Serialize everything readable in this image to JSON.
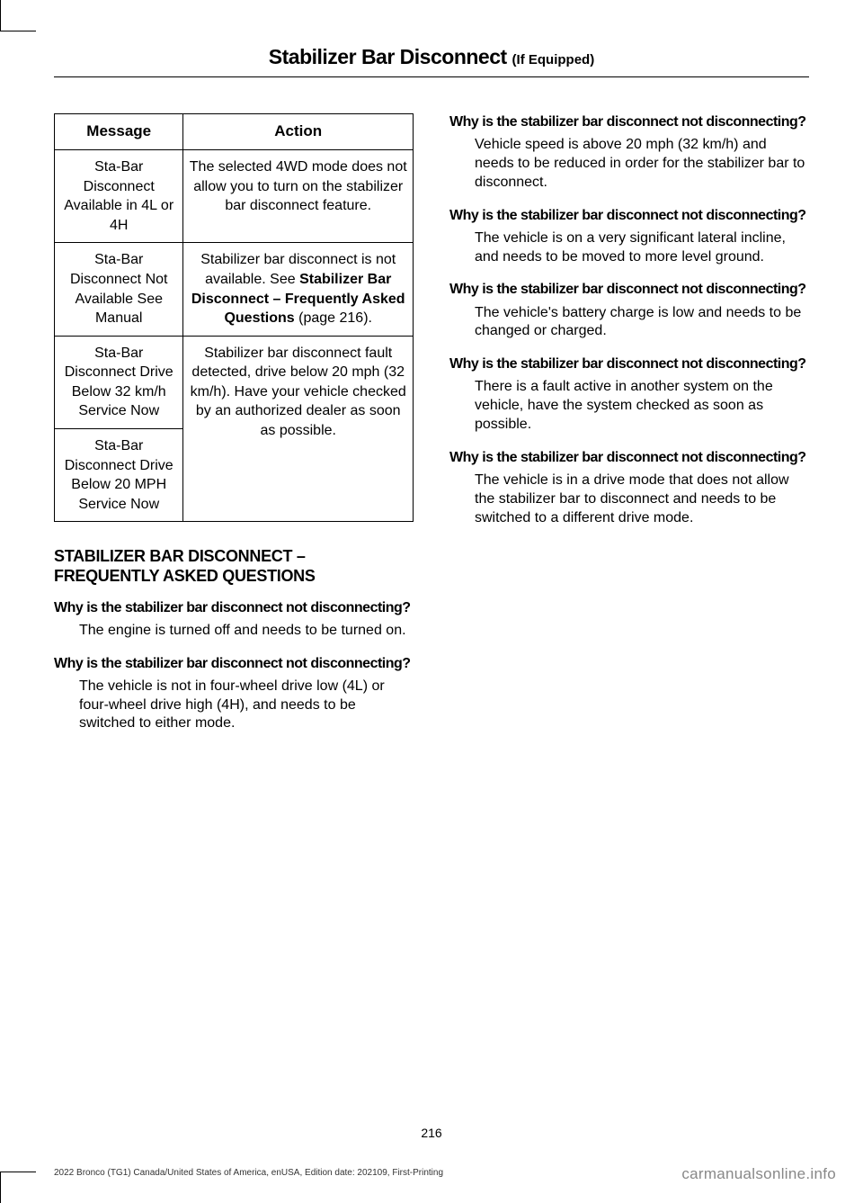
{
  "header": {
    "title": "Stabilizer Bar Disconnect ",
    "subtitle": "(If Equipped)"
  },
  "table": {
    "columns": [
      "Message",
      "Action"
    ],
    "rows": [
      {
        "message": "Sta-Bar Disconnect Available in 4L or 4H",
        "action": "The selected 4WD mode does not allow you to turn on the stabilizer bar disconnect feature."
      },
      {
        "message": "Sta-Bar Disconnect Not Available See Manual",
        "action_prefix": "Stabilizer bar disconnect is not available.  See ",
        "action_bold": "Stabilizer Bar Disconnect – Frequently Asked Questions ",
        "action_suffix": "(page 216)."
      },
      {
        "message": "Sta-Bar Disconnect Drive Below 32 km/h Service Now",
        "action": "Stabilizer bar disconnect fault detected, drive below 20 mph (32 km/h). Have your vehicle checked by an authorized dealer as soon as possible.",
        "rowspan_action": true
      },
      {
        "message": "Sta-Bar Disconnect Drive Below 20 MPH Service Now"
      }
    ]
  },
  "section_heading": "STABILIZER BAR DISCONNECT – FREQUENTLY ASKED QUESTIONS",
  "faqs_left": [
    {
      "q": "Why is the stabilizer bar disconnect not disconnecting?",
      "a": "The engine is turned off and needs to be turned on."
    },
    {
      "q": "Why is the stabilizer bar disconnect not disconnecting?",
      "a": "The vehicle is not in four-wheel drive low (4L) or four-wheel drive high (4H), and needs to be switched to either mode."
    }
  ],
  "faqs_right": [
    {
      "q": "Why is the stabilizer bar disconnect not disconnecting?",
      "a": "Vehicle speed is above 20 mph (32 km/h) and needs to be reduced in order for the stabilizer bar to disconnect."
    },
    {
      "q": "Why is the stabilizer bar disconnect not disconnecting?",
      "a": "The vehicle is on a very significant lateral incline, and needs to be moved to more level ground."
    },
    {
      "q": "Why is the stabilizer bar disconnect not disconnecting?",
      "a": "The vehicle's battery charge is low and needs to be changed or charged."
    },
    {
      "q": "Why is the stabilizer bar disconnect not disconnecting?",
      "a": "There is a fault active in another system on the vehicle, have the system checked as soon as possible."
    },
    {
      "q": "Why is the stabilizer bar disconnect not disconnecting?",
      "a": "The vehicle is in a drive mode that does not allow the stabilizer bar to disconnect and needs to be switched to a different drive mode."
    }
  ],
  "page_number": "216",
  "footer_left": "2022 Bronco (TG1) Canada/United States of America, enUSA, Edition date: 202109, First-Printing",
  "footer_right": "carmanualsonline.info"
}
